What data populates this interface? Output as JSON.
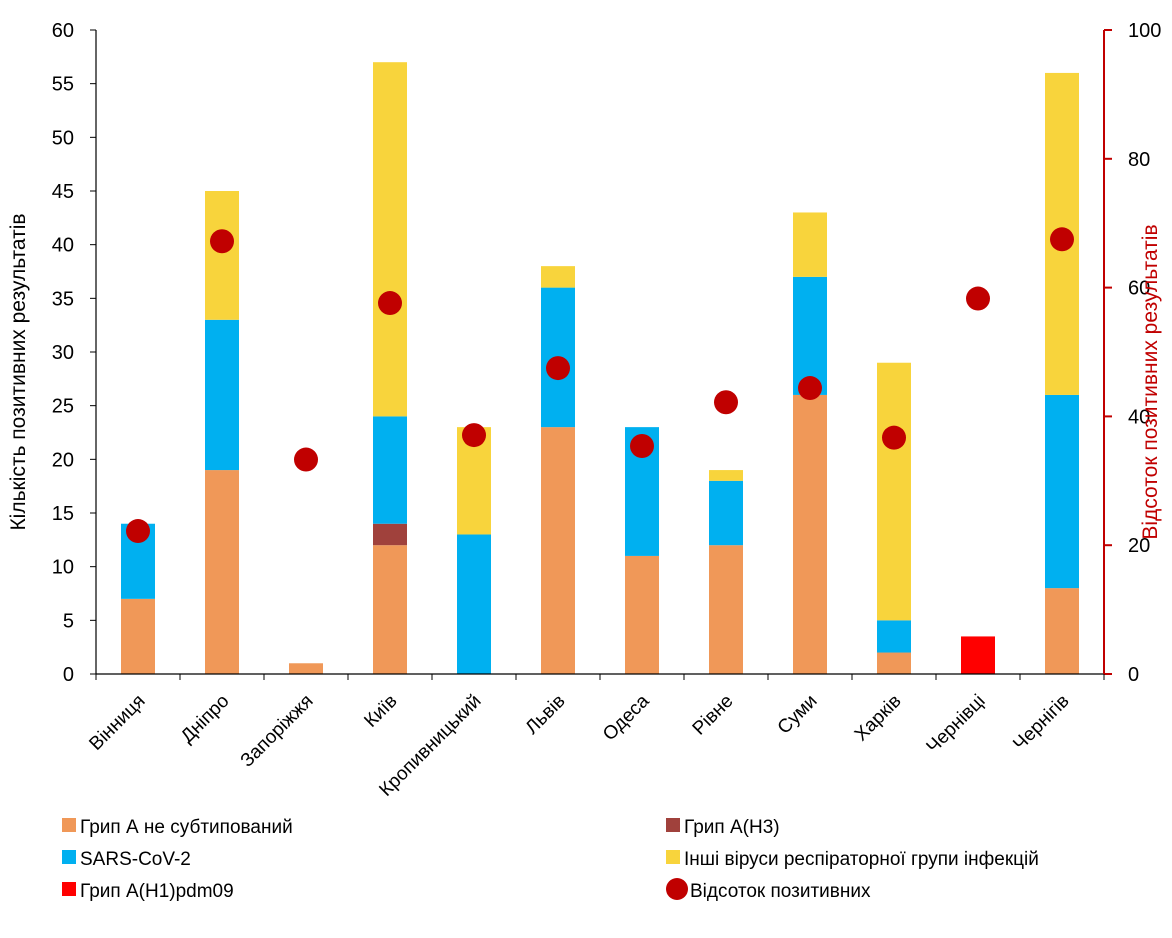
{
  "chart_data": {
    "type": "bar",
    "stacked": true,
    "title": "",
    "xlabel": "",
    "ylabel": "Кількість позитивних результатів",
    "y2label": "Відсоток позитивних результатів",
    "ylim": [
      0,
      60
    ],
    "y2lim": [
      0,
      100
    ],
    "yticks": [
      0,
      5,
      10,
      15,
      20,
      25,
      30,
      35,
      40,
      45,
      50,
      55,
      60
    ],
    "y2ticks": [
      0,
      20,
      40,
      60,
      80,
      100
    ],
    "grid": false,
    "legend_position": "bottom",
    "categories": [
      "Вінниця",
      "Дніпро",
      "Запоріжжя",
      "Київ",
      "Кропивницький",
      "Львів",
      "Одеса",
      "Рівне",
      "Суми",
      "Харків",
      "Чернівці",
      "Чернігів"
    ],
    "series": [
      {
        "name": "Грип А не субтипований",
        "color": "#F09858",
        "values": [
          7,
          19,
          1,
          12,
          0,
          23,
          11,
          12,
          26,
          2,
          0,
          8
        ]
      },
      {
        "name": "Грип А(Н3)",
        "color": "#A0413C",
        "values": [
          0,
          0,
          0,
          2,
          0,
          0,
          0,
          0,
          0,
          0,
          0,
          0
        ]
      },
      {
        "name": "Грип А(Н1)pdm09",
        "color": "#FF0000",
        "values": [
          0,
          0,
          0,
          0,
          0,
          0,
          0,
          0,
          0,
          0,
          3.5,
          0
        ]
      },
      {
        "name": "SARS-CoV-2",
        "color": "#00B0F0",
        "values": [
          7,
          14,
          0,
          10,
          13,
          13,
          12,
          6,
          11,
          3,
          0,
          18
        ]
      },
      {
        "name": "Інші віруси респіраторної групи інфекцій",
        "color": "#F8D43C",
        "values": [
          0,
          12,
          0,
          33,
          10,
          2,
          0,
          1,
          6,
          24,
          0,
          30
        ]
      }
    ],
    "points": {
      "name": "Відсоток позитивних",
      "color": "#C00000",
      "axis": "right",
      "values": [
        22.2,
        67.2,
        33.3,
        57.6,
        37.1,
        47.5,
        35.4,
        42.2,
        44.4,
        36.7,
        58.3,
        67.5
      ]
    },
    "legend": {
      "rows": [
        [
          "Грип А не субтипований",
          "Грип А(Н3)"
        ],
        [
          "SARS-CoV-2",
          "Інші віруси респіраторної групи інфекцій"
        ],
        [
          "Грип А(Н1)pdm09",
          "Відсоток позитивних"
        ]
      ]
    }
  }
}
